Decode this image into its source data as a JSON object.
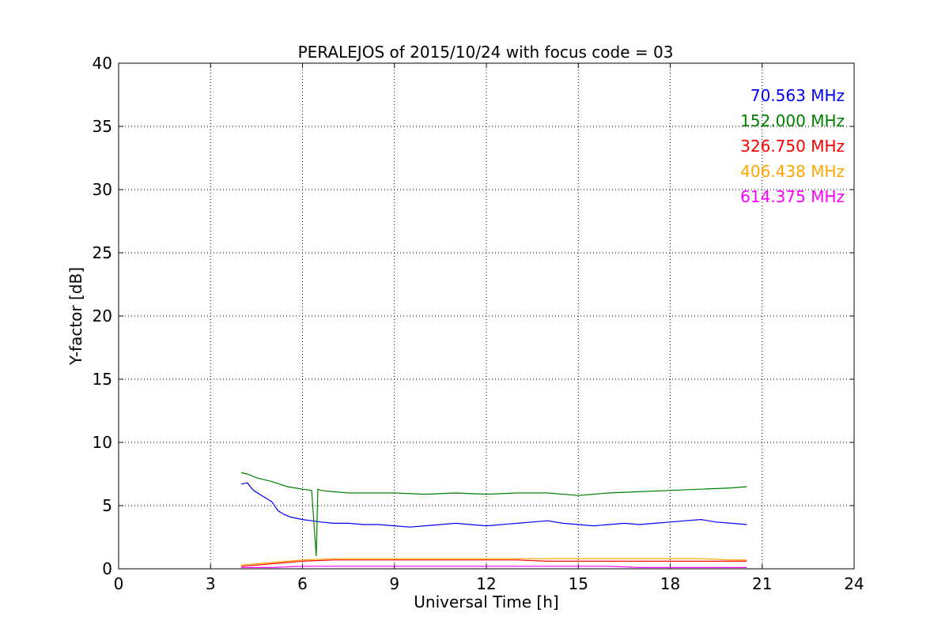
{
  "chart_data": {
    "type": "line",
    "title": "PERALEJOS of 2015/10/24 with focus code = 03",
    "xlabel": "Universal Time [h]",
    "ylabel": "Y-factor [dB]",
    "xlim": [
      0,
      24
    ],
    "ylim": [
      0,
      40
    ],
    "xticks": [
      0,
      3,
      6,
      9,
      12,
      15,
      18,
      21,
      24
    ],
    "yticks": [
      0,
      5,
      10,
      15,
      20,
      25,
      30,
      35,
      40
    ],
    "grid": true,
    "legend_position": "top-right",
    "series": [
      {
        "name": "70.563 MHz",
        "color": "#0000ff",
        "x": [
          4.0,
          4.2,
          4.4,
          4.6,
          4.8,
          5.0,
          5.2,
          5.4,
          5.6,
          5.8,
          6.0,
          6.3,
          6.6,
          7.0,
          7.5,
          8.0,
          8.5,
          9.0,
          9.5,
          10.0,
          10.5,
          11.0,
          11.5,
          12.0,
          12.5,
          13.0,
          13.5,
          14.0,
          14.5,
          15.0,
          15.5,
          16.0,
          16.5,
          17.0,
          17.5,
          18.0,
          18.5,
          19.0,
          19.5,
          20.0,
          20.5
        ],
        "y": [
          6.7,
          6.8,
          6.2,
          5.9,
          5.6,
          5.3,
          4.6,
          4.3,
          4.1,
          4.0,
          3.9,
          3.8,
          3.7,
          3.6,
          3.6,
          3.5,
          3.5,
          3.4,
          3.3,
          3.4,
          3.5,
          3.6,
          3.5,
          3.4,
          3.5,
          3.6,
          3.7,
          3.8,
          3.6,
          3.5,
          3.4,
          3.5,
          3.6,
          3.5,
          3.6,
          3.7,
          3.8,
          3.9,
          3.7,
          3.6,
          3.5
        ]
      },
      {
        "name": "152.000 MHz",
        "color": "#008000",
        "x": [
          4.0,
          4.2,
          4.5,
          5.0,
          5.5,
          6.0,
          6.3,
          6.45,
          6.5,
          6.6,
          7.0,
          7.5,
          8.0,
          9.0,
          10.0,
          11.0,
          12.0,
          13.0,
          14.0,
          15.0,
          15.5,
          16.0,
          17.0,
          18.0,
          19.0,
          20.0,
          20.5
        ],
        "y": [
          7.6,
          7.5,
          7.2,
          6.9,
          6.5,
          6.3,
          6.2,
          1.0,
          6.3,
          6.2,
          6.1,
          6.0,
          6.0,
          6.0,
          5.9,
          6.0,
          5.9,
          6.0,
          6.0,
          5.8,
          5.9,
          6.0,
          6.1,
          6.2,
          6.3,
          6.4,
          6.5
        ]
      },
      {
        "name": "326.750 MHz",
        "color": "#ff0000",
        "x": [
          4.0,
          5.0,
          6.0,
          7.0,
          8.0,
          9.0,
          10.0,
          11.0,
          12.0,
          13.0,
          14.0,
          15.0,
          16.0,
          17.0,
          18.0,
          19.0,
          20.0,
          20.5
        ],
        "y": [
          0.2,
          0.4,
          0.6,
          0.7,
          0.7,
          0.7,
          0.7,
          0.7,
          0.7,
          0.7,
          0.6,
          0.6,
          0.6,
          0.6,
          0.6,
          0.6,
          0.6,
          0.6
        ]
      },
      {
        "name": "406.438 MHz",
        "color": "#ffa500",
        "x": [
          4.0,
          5.0,
          6.0,
          7.0,
          8.0,
          9.0,
          10.0,
          11.0,
          12.0,
          13.0,
          14.0,
          15.0,
          16.0,
          17.0,
          18.0,
          19.0,
          20.0,
          20.5
        ],
        "y": [
          0.3,
          0.5,
          0.7,
          0.8,
          0.8,
          0.8,
          0.8,
          0.8,
          0.8,
          0.8,
          0.8,
          0.8,
          0.8,
          0.8,
          0.8,
          0.8,
          0.7,
          0.7
        ]
      },
      {
        "name": "614.375 MHz",
        "color": "#ff00ff",
        "x": [
          4.0,
          5.0,
          6.0,
          7.0,
          8.0,
          9.0,
          10.0,
          11.0,
          12.0,
          13.0,
          14.0,
          15.0,
          16.0,
          17.0,
          18.0,
          19.0,
          20.0,
          20.5
        ],
        "y": [
          0.1,
          0.1,
          0.2,
          0.2,
          0.2,
          0.2,
          0.2,
          0.2,
          0.2,
          0.2,
          0.2,
          0.2,
          0.2,
          0.1,
          0.1,
          0.1,
          0.1,
          0.1
        ]
      }
    ]
  }
}
